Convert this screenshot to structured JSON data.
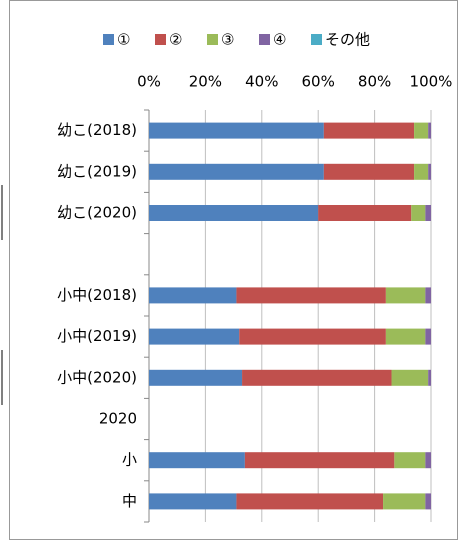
{
  "chart_data": {
    "type": "stacked-bar-horizontal",
    "categories": [
      "幼こ(2018)",
      "幼こ(2019)",
      "幼こ(2020)",
      null,
      "小中(2018)",
      "小中(2019)",
      "小中(2020)",
      "2020",
      "小",
      "中"
    ],
    "series": [
      {
        "name": "①",
        "color": "#4f81bd",
        "values": [
          62,
          62,
          60,
          null,
          31,
          32,
          33,
          null,
          34,
          31
        ]
      },
      {
        "name": "②",
        "color": "#c0504d",
        "values": [
          32,
          32,
          33,
          null,
          53,
          52,
          53,
          null,
          53,
          52
        ]
      },
      {
        "name": "③",
        "color": "#9bbb59",
        "values": [
          5,
          5,
          5,
          null,
          14,
          14,
          13,
          null,
          11,
          15
        ]
      },
      {
        "name": "④",
        "color": "#8064a2",
        "values": [
          1,
          1,
          2,
          null,
          2,
          2,
          1,
          null,
          2,
          2
        ]
      },
      {
        "name": "その他",
        "color": "#4bacc6",
        "values": [
          0,
          0,
          0,
          null,
          0,
          0,
          0,
          null,
          0,
          0
        ]
      }
    ],
    "xlim": [
      0,
      100
    ],
    "xticks": [
      {
        "value": 0,
        "label": "0%"
      },
      {
        "value": 20,
        "label": "20%"
      },
      {
        "value": 40,
        "label": "40%"
      },
      {
        "value": 60,
        "label": "60%"
      },
      {
        "value": 80,
        "label": "80%"
      },
      {
        "value": 100,
        "label": "100%"
      }
    ],
    "grid": true,
    "legend": "top"
  }
}
